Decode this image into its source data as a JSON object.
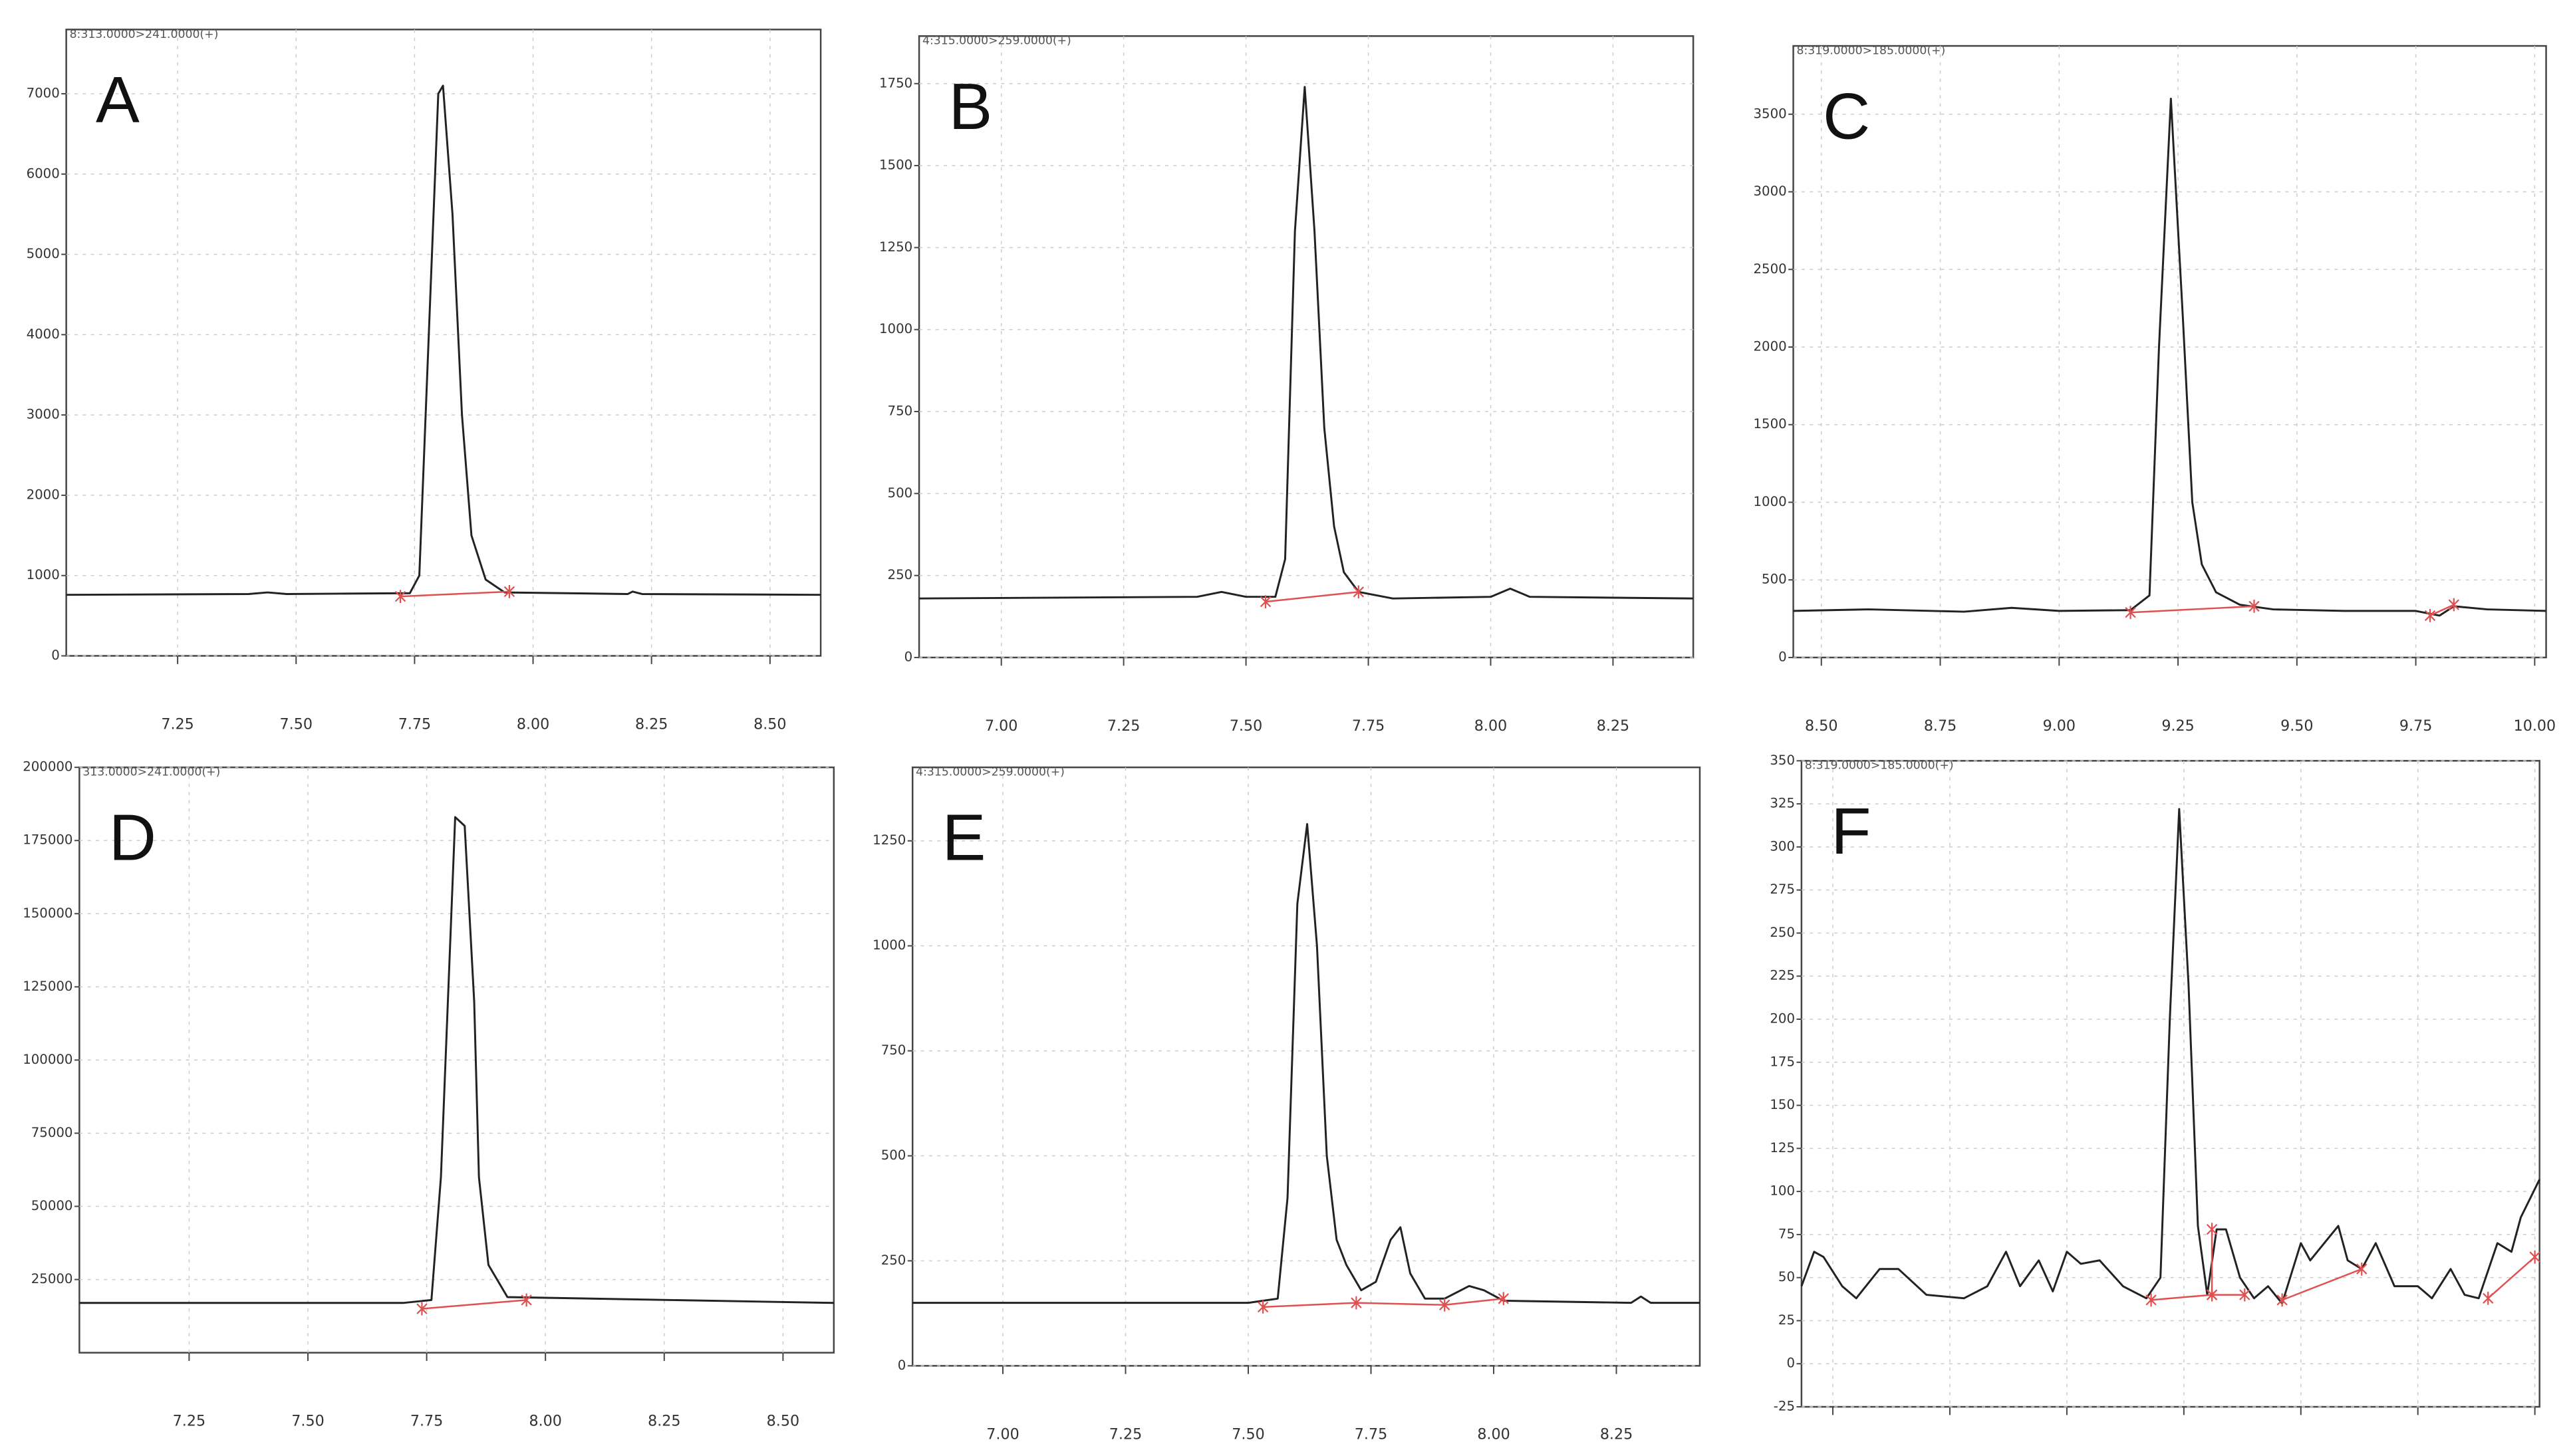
{
  "chart_data": [
    {
      "type": "line",
      "title": "A",
      "subtitle": "8:313.0000>241.0000(+)",
      "grid": true,
      "xlim": [
        7.015,
        8.607
      ],
      "ylim": [
        0,
        7800
      ],
      "xticks": [
        {
          "value": 7.25,
          "label": "7.25"
        },
        {
          "value": 7.5,
          "label": "7.50"
        },
        {
          "value": 7.75,
          "label": "7.75"
        },
        {
          "value": 8,
          "label": "8.00"
        },
        {
          "value": 8.25,
          "label": "8.25"
        },
        {
          "value": 8.5,
          "label": "8.50"
        }
      ],
      "yticks": [
        0,
        1000,
        2000,
        3000,
        4000,
        5000,
        6000,
        7000
      ],
      "series": [
        {
          "color": "#222222",
          "x": [
            7.015,
            7.4,
            7.44,
            7.48,
            7.6,
            7.74,
            7.76,
            7.78,
            7.8,
            7.81,
            7.83,
            7.85,
            7.87,
            7.9,
            7.94,
            8.2,
            8.21,
            8.23,
            8.607
          ],
          "values": [
            760,
            770,
            790,
            770,
            775,
            780,
            1000,
            4000,
            7000,
            7100,
            5500,
            3000,
            1500,
            950,
            790,
            770,
            800,
            770,
            760
          ]
        },
        {
          "color": "#e05050",
          "x": [
            7.72,
            7.95
          ],
          "values": [
            740,
            800
          ]
        }
      ]
    },
    {
      "type": "line",
      "title": "B",
      "subtitle": "4:315.0000>259.0000(+)",
      "grid": true,
      "xlim": [
        6.832,
        8.414
      ],
      "ylim": [
        0,
        1895
      ],
      "xticks": [
        {
          "value": 7,
          "label": "7.00"
        },
        {
          "value": 7.25,
          "label": "7.25"
        },
        {
          "value": 7.5,
          "label": "7.50"
        },
        {
          "value": 7.75,
          "label": "7.75"
        },
        {
          "value": 8,
          "label": "8.00"
        },
        {
          "value": 8.25,
          "label": "8.25"
        }
      ],
      "yticks": [
        0,
        250,
        500,
        750,
        1000,
        1250,
        1500,
        1750
      ],
      "series": [
        {
          "color": "#222222",
          "x": [
            6.832,
            7.4,
            7.45,
            7.5,
            7.56,
            7.58,
            7.6,
            7.62,
            7.64,
            7.66,
            7.68,
            7.7,
            7.73,
            7.8,
            8.0,
            8.04,
            8.08,
            8.414
          ],
          "values": [
            180,
            185,
            200,
            185,
            185,
            300,
            1300,
            1740,
            1300,
            700,
            400,
            260,
            200,
            180,
            185,
            210,
            185,
            180
          ]
        },
        {
          "color": "#e05050",
          "x": [
            7.54,
            7.73
          ],
          "values": [
            170,
            200
          ]
        }
      ]
    },
    {
      "type": "line",
      "title": "C",
      "subtitle": "8:319.0000>185.0000(+)",
      "grid": true,
      "xlim": [
        8.441,
        10.024
      ],
      "ylim": [
        0,
        3940
      ],
      "xticks": [
        {
          "value": 8.5,
          "label": "8.50"
        },
        {
          "value": 8.75,
          "label": "8.75"
        },
        {
          "value": 9,
          "label": "9.00"
        },
        {
          "value": 9.25,
          "label": "9.25"
        },
        {
          "value": 9.5,
          "label": "9.50"
        },
        {
          "value": 9.75,
          "label": "9.75"
        },
        {
          "value": 10,
          "label": "10.00"
        }
      ],
      "yticks": [
        0,
        500,
        1000,
        1500,
        2000,
        2500,
        3000,
        3500
      ],
      "series": [
        {
          "color": "#222222",
          "x": [
            8.441,
            8.6,
            8.8,
            8.9,
            9.0,
            9.15,
            9.19,
            9.21,
            9.235,
            9.26,
            9.28,
            9.3,
            9.33,
            9.38,
            9.45,
            9.6,
            9.75,
            9.8,
            9.83,
            9.9,
            10.024
          ],
          "values": [
            300,
            310,
            295,
            320,
            300,
            305,
            400,
            2000,
            3600,
            2200,
            1000,
            600,
            420,
            340,
            310,
            300,
            300,
            270,
            330,
            310,
            300
          ]
        },
        {
          "color": "#e05050",
          "x": [
            9.15,
            9.41
          ],
          "values": [
            290,
            330
          ]
        },
        {
          "color": "#e05050",
          "x": [
            9.78,
            9.83
          ],
          "values": [
            270,
            340
          ]
        }
      ]
    },
    {
      "type": "line",
      "title": "D",
      "subtitle": "313.0000>241.0000(+)",
      "grid": true,
      "xlim": [
        7.019,
        8.607
      ],
      "ylim": [
        0,
        200000
      ],
      "xticks": [
        {
          "value": 7.25,
          "label": "7.25"
        },
        {
          "value": 7.5,
          "label": "7.50"
        },
        {
          "value": 7.75,
          "label": "7.75"
        },
        {
          "value": 8,
          "label": "8.00"
        },
        {
          "value": 8.25,
          "label": "8.25"
        },
        {
          "value": 8.5,
          "label": "8.50"
        }
      ],
      "yticks": [
        25000,
        50000,
        75000,
        100000,
        125000,
        150000,
        175000,
        200000
      ],
      "series": [
        {
          "color": "#222222",
          "x": [
            7.019,
            7.7,
            7.76,
            7.78,
            7.81,
            7.83,
            7.85,
            7.86,
            7.88,
            7.92,
            8.607
          ],
          "values": [
            17000,
            17000,
            18000,
            60000,
            183000,
            180000,
            120000,
            60000,
            30000,
            19000,
            17000
          ]
        },
        {
          "color": "#e05050",
          "x": [
            7.74,
            7.96
          ],
          "values": [
            15000,
            18000
          ]
        }
      ]
    },
    {
      "type": "line",
      "title": "E",
      "subtitle": "4:315.0000>259.0000(+)",
      "grid": true,
      "xlim": [
        6.816,
        8.42
      ],
      "ylim": [
        0,
        1425
      ],
      "xticks": [
        {
          "value": 7,
          "label": "7.00"
        },
        {
          "value": 7.25,
          "label": "7.25"
        },
        {
          "value": 7.5,
          "label": "7.50"
        },
        {
          "value": 7.75,
          "label": "7.75"
        },
        {
          "value": 8,
          "label": "8.00"
        },
        {
          "value": 8.25,
          "label": "8.25"
        }
      ],
      "yticks": [
        0,
        250,
        500,
        750,
        1000,
        1250
      ],
      "series": [
        {
          "color": "#222222",
          "x": [
            6.816,
            7.5,
            7.56,
            7.58,
            7.6,
            7.62,
            7.64,
            7.66,
            7.68,
            7.7,
            7.73,
            7.76,
            7.79,
            7.81,
            7.83,
            7.86,
            7.9,
            7.95,
            7.98,
            8.02,
            8.28,
            8.3,
            8.32,
            8.42
          ],
          "values": [
            150,
            150,
            160,
            400,
            1100,
            1290,
            1000,
            500,
            300,
            240,
            180,
            200,
            300,
            330,
            220,
            160,
            160,
            190,
            180,
            155,
            150,
            165,
            150,
            150
          ]
        },
        {
          "color": "#e05050",
          "x": [
            7.53,
            7.72,
            7.9,
            8.02
          ],
          "values": [
            140,
            150,
            145,
            160
          ]
        }
      ]
    },
    {
      "type": "line",
      "title": "F",
      "subtitle": "8:319.0000>185.0000(+)",
      "grid": true,
      "xlim": [
        8.433,
        10.01
      ],
      "ylim": [
        -25,
        350
      ],
      "xticks": [
        {
          "value": 8.5,
          "label": "8.50"
        },
        {
          "value": 8.75,
          "label": "8.75"
        },
        {
          "value": 9,
          "label": "9.00"
        },
        {
          "value": 9.25,
          "label": "9.25"
        },
        {
          "value": 9.5,
          "label": "9.50"
        },
        {
          "value": 9.75,
          "label": "9.75"
        },
        {
          "value": 10,
          "label": "10.00"
        }
      ],
      "yticks": [
        -25,
        0,
        25,
        50,
        75,
        100,
        125,
        150,
        175,
        200,
        225,
        250,
        275,
        300,
        325,
        350
      ],
      "series": [
        {
          "color": "#222222",
          "x": [
            8.433,
            8.46,
            8.48,
            8.52,
            8.55,
            8.6,
            8.64,
            8.7,
            8.78,
            8.83,
            8.87,
            8.9,
            8.94,
            8.97,
            9.0,
            9.03,
            9.07,
            9.12,
            9.17,
            9.2,
            9.22,
            9.24,
            9.26,
            9.28,
            9.3,
            9.32,
            9.34,
            9.37,
            9.4,
            9.43,
            9.46,
            9.5,
            9.52,
            9.55,
            9.58,
            9.6,
            9.63,
            9.66,
            9.7,
            9.75,
            9.78,
            9.82,
            9.85,
            9.88,
            9.92,
            9.95,
            9.97,
            10.01
          ],
          "values": [
            45,
            65,
            62,
            45,
            38,
            55,
            55,
            40,
            38,
            45,
            65,
            45,
            60,
            42,
            65,
            58,
            60,
            45,
            38,
            50,
            200,
            322,
            220,
            80,
            40,
            78,
            78,
            50,
            38,
            45,
            35,
            70,
            60,
            70,
            80,
            60,
            55,
            70,
            45,
            45,
            38,
            55,
            40,
            38,
            70,
            65,
            85,
            107
          ]
        },
        {
          "color": "#e05050",
          "x": [
            9.18,
            9.31,
            9.38
          ],
          "values": [
            37,
            40,
            40
          ]
        },
        {
          "color": "#e05050",
          "x": [
            9.31,
            9.31
          ],
          "values": [
            40,
            78
          ]
        },
        {
          "color": "#e05050",
          "x": [
            9.46,
            9.63
          ],
          "values": [
            37,
            55
          ]
        },
        {
          "color": "#e05050",
          "x": [
            9.9,
            10.0
          ],
          "values": [
            38,
            62
          ]
        }
      ]
    }
  ]
}
